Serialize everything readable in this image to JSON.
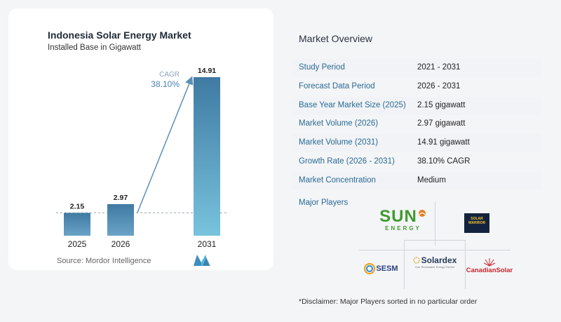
{
  "chart_data": {
    "type": "bar",
    "title": "Indonesia Solar Energy Market",
    "subtitle": "Installed Base in Gigawatt",
    "categories": [
      "2025",
      "2026",
      "2031"
    ],
    "values": [
      2.15,
      2.97,
      14.91
    ],
    "data_labels": [
      "2.15",
      "2.97",
      "14.91"
    ],
    "ylim": [
      0,
      15
    ],
    "grid": false,
    "annotation": {
      "label": "CAGR",
      "value": "38.10%"
    },
    "colors": {
      "bar_light": "#6aa3c6",
      "bar_dark": "#3f7aa3",
      "bar_last": "#78c3dd",
      "arrow": "#5b8fb5",
      "cagr": "#4a84ad"
    }
  },
  "source": {
    "label": "Source:",
    "name": "Mordor Intelligence"
  },
  "overview": {
    "title": "Market Overview",
    "rows": [
      {
        "label": "Study Period",
        "value": "2021 - 2031"
      },
      {
        "label": "Forecast Data Period",
        "value": "2026 - 2031"
      },
      {
        "label": "Base Year Market Size (2025)",
        "value": "2.15 gigawatt"
      },
      {
        "label": "Market Volume (2026)",
        "value": "2.97 gigawatt"
      },
      {
        "label": "Market Volume (2031)",
        "value": "14.91 gigawatt"
      },
      {
        "label": "Growth Rate (2026 - 2031)",
        "value": "38.10% CAGR"
      },
      {
        "label": "Market Concentration",
        "value": "Medium"
      }
    ]
  },
  "players": {
    "title": "Major Players",
    "logos": [
      {
        "name": "sun-energy",
        "text": "SUN",
        "sub": "ENERGY"
      },
      {
        "name": "solar-warrior",
        "text": "SOLAR WARRIOR"
      },
      {
        "name": "sesm",
        "text": "SESM"
      },
      {
        "name": "solardex",
        "text": "Solardex",
        "sub": "Your Renewable Energy Partner"
      },
      {
        "name": "canadian-solar",
        "text": "CanadianSolar"
      }
    ]
  },
  "disclaimer": "*Disclaimer: Major Players sorted in no particular order"
}
